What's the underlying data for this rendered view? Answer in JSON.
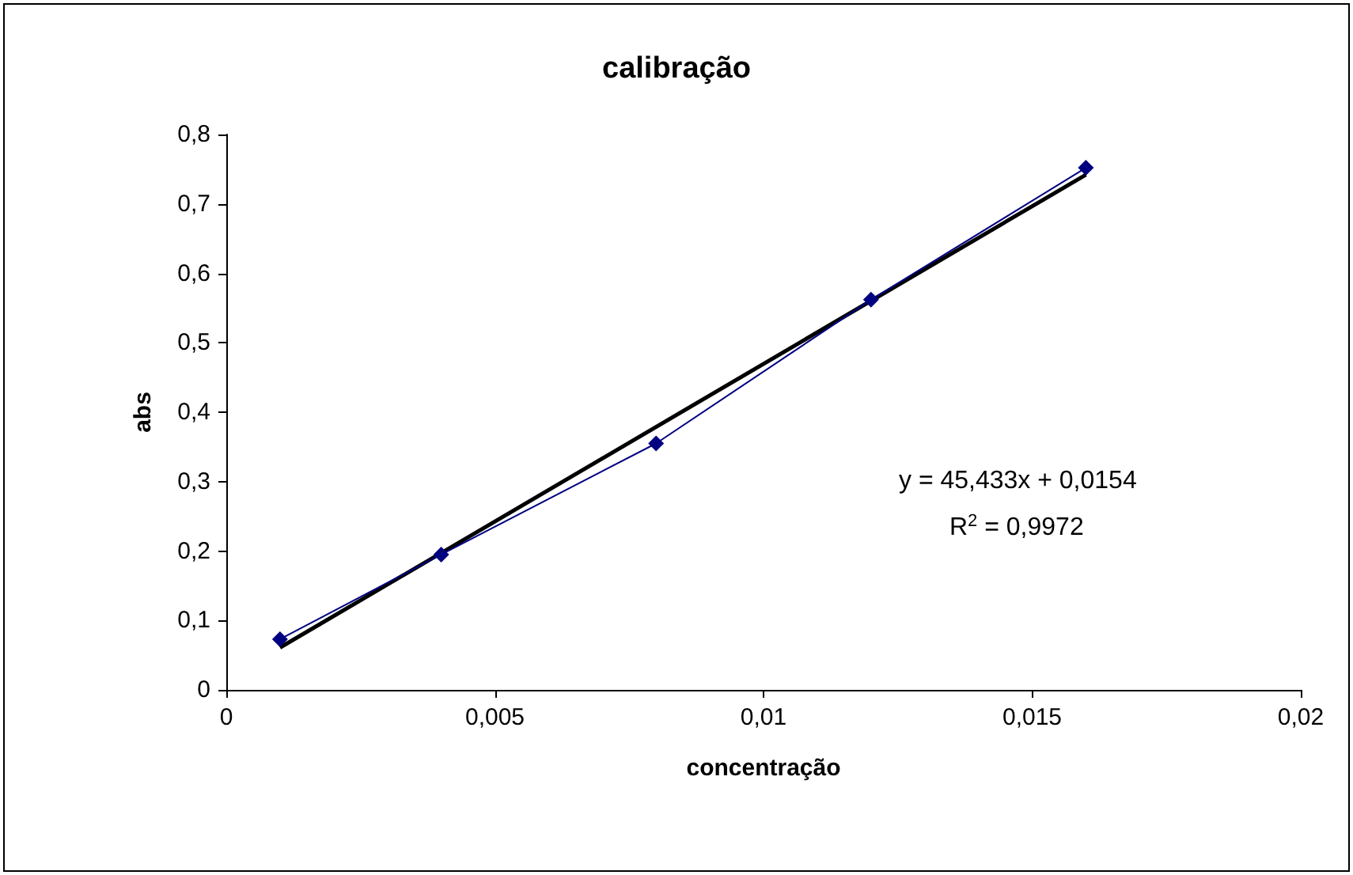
{
  "chart_data": {
    "type": "line",
    "title": "calibração",
    "xlabel": "concentração",
    "ylabel": "abs",
    "series": [
      {
        "color": "#000080",
        "x": [
          0.001,
          0.004,
          0.008,
          0.012,
          0.016
        ],
        "values": [
          0.073,
          0.195,
          0.355,
          0.562,
          0.752
        ],
        "marker": "diamond"
      },
      {
        "color": "#000000",
        "x": [
          0.001,
          0.016
        ],
        "values": [
          0.061,
          0.742
        ],
        "marker": "none"
      }
    ],
    "xlim": [
      0,
      0.02
    ],
    "xticks": [
      0,
      {
        "value": 0.005,
        "label": "0,005"
      },
      {
        "value": 0.01,
        "label": "0,01"
      },
      {
        "value": 0.015,
        "label": "0,015"
      },
      {
        "value": 0.02,
        "label": "0,02"
      }
    ],
    "ylim": [
      0,
      0.8
    ],
    "yticks": [
      0,
      {
        "value": 0.1,
        "label": "0,1"
      },
      {
        "value": 0.2,
        "label": "0,2"
      },
      {
        "value": 0.3,
        "label": "0,3"
      },
      {
        "value": 0.4,
        "label": "0,4"
      },
      {
        "value": 0.5,
        "label": "0,5"
      },
      {
        "value": 0.6,
        "label": "0,6"
      },
      {
        "value": 0.7,
        "label": "0,7"
      },
      {
        "value": 0.8,
        "label": "0,8"
      }
    ],
    "annotations": [
      "y = 45,433x + 0,0154",
      "R$^{2}$ = 0,9972"
    ],
    "grid": false
  }
}
